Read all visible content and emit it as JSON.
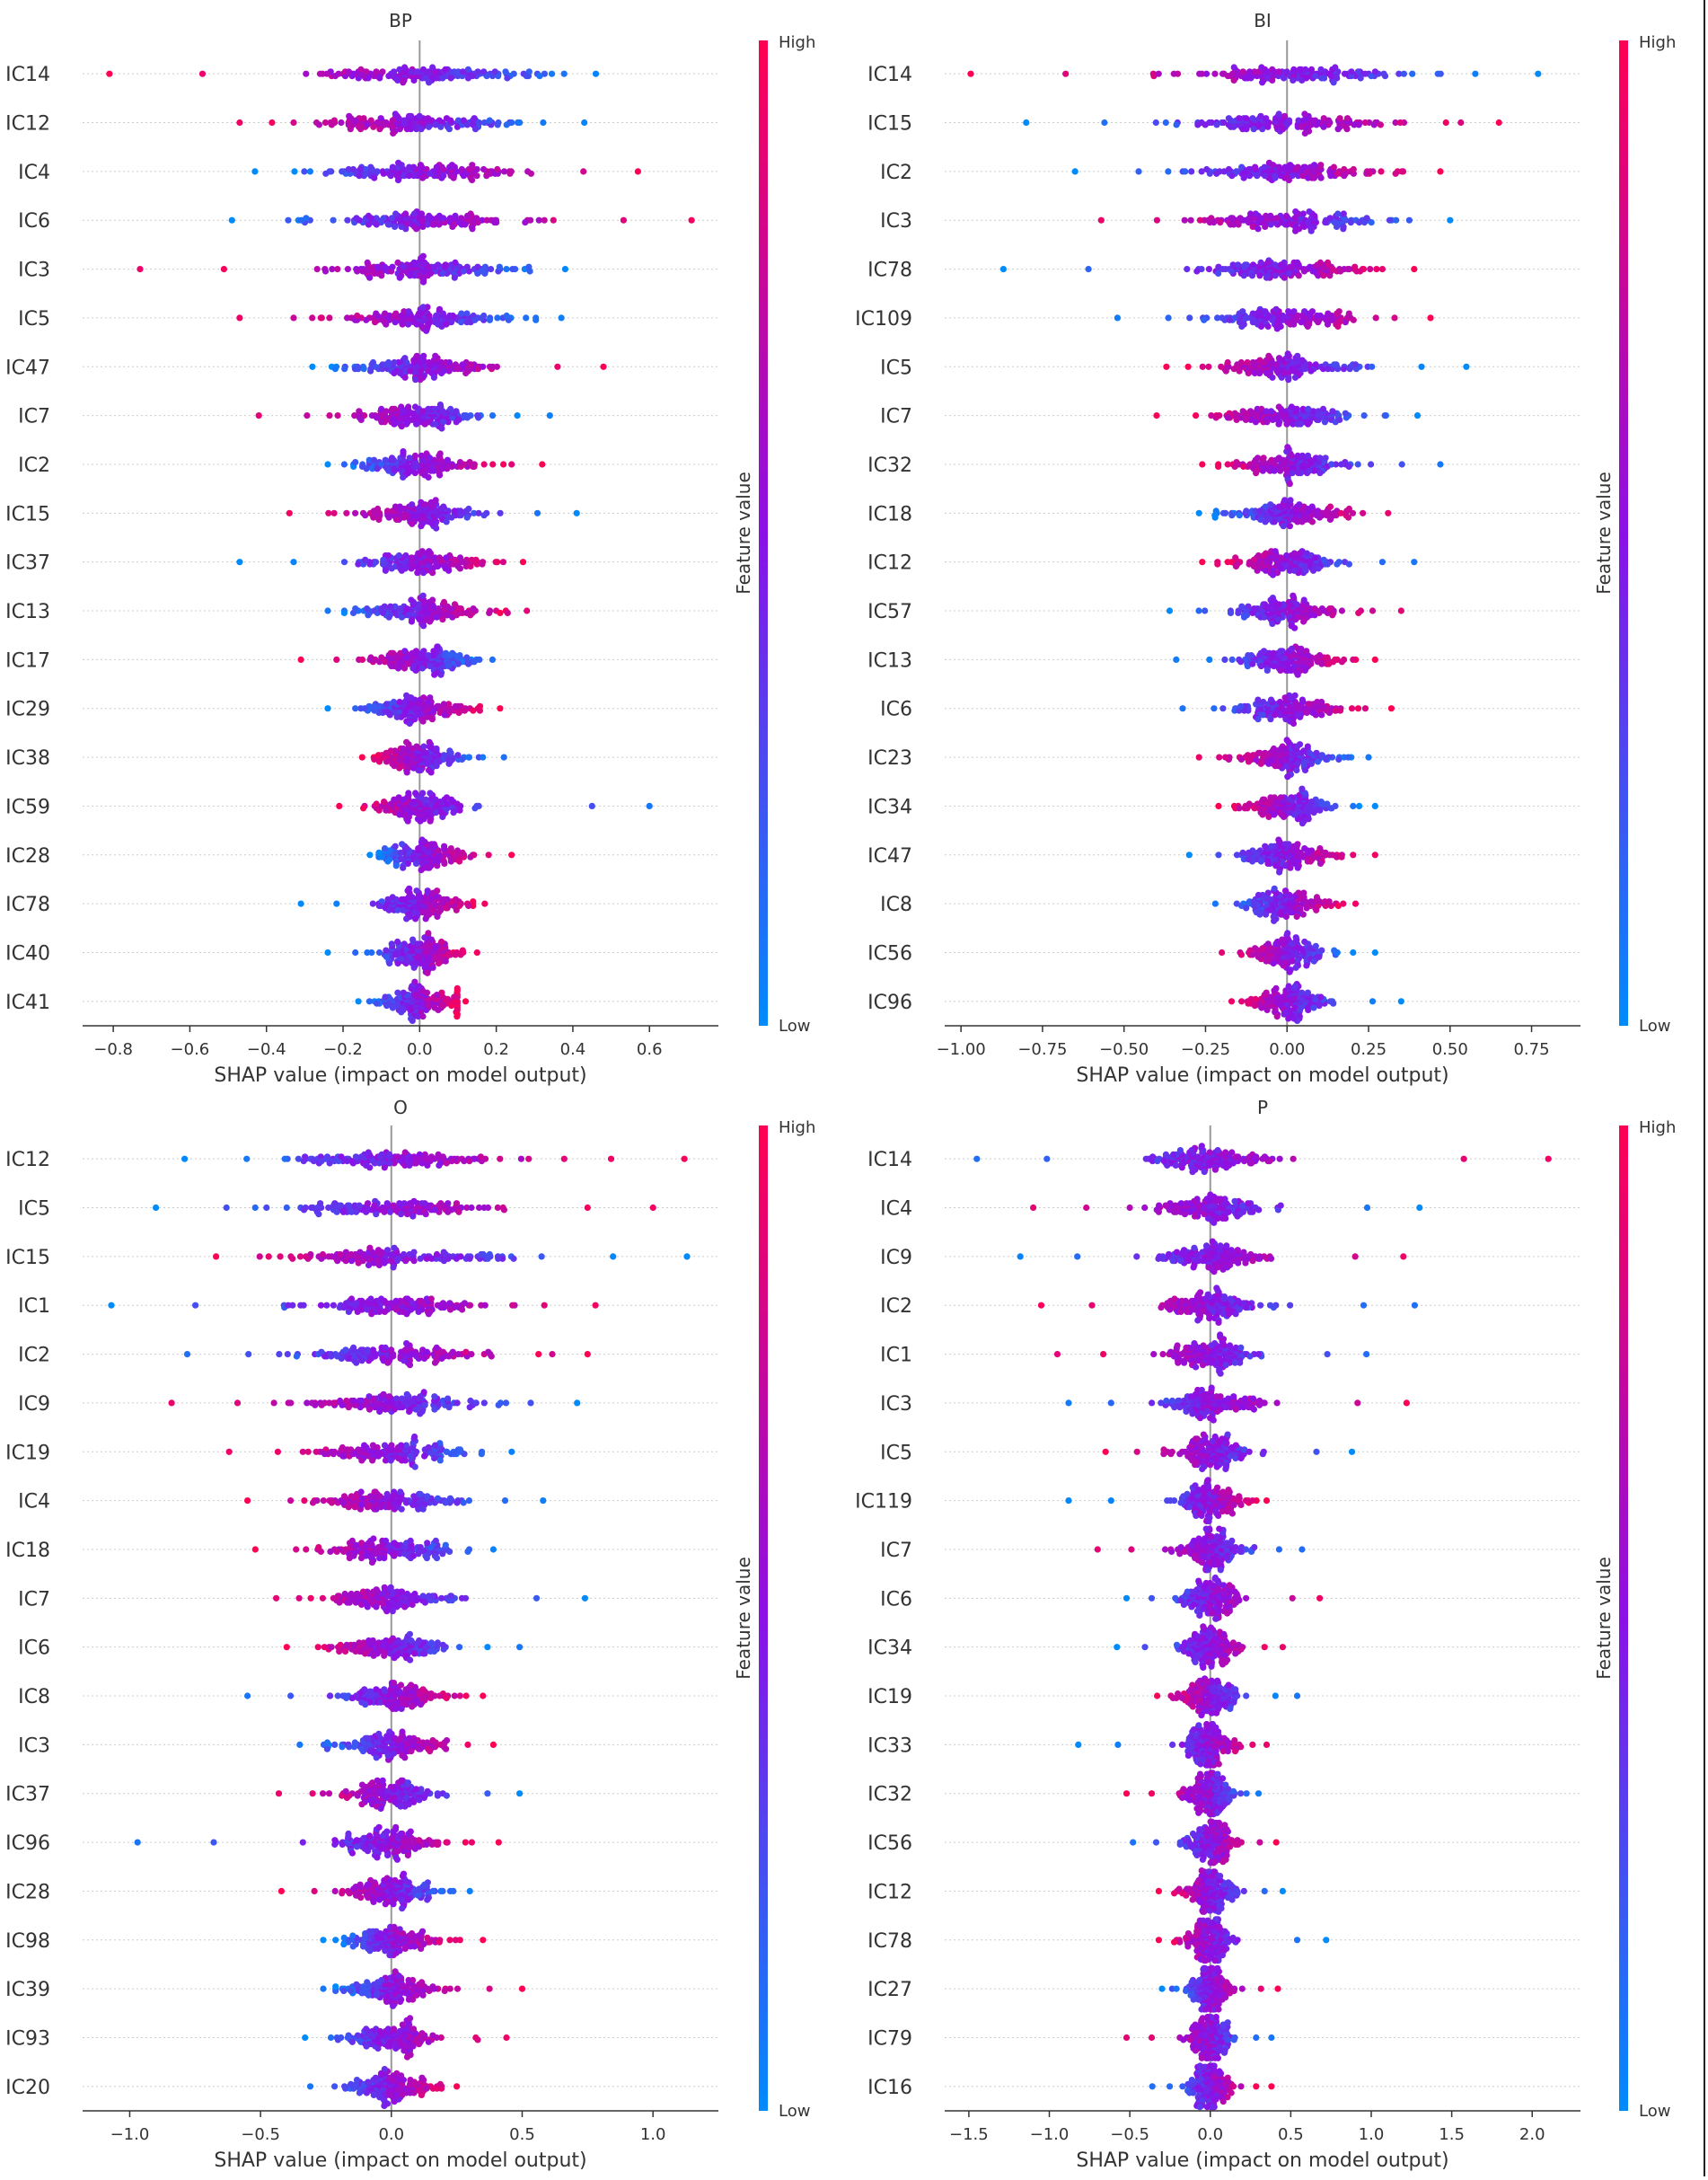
{
  "figure": {
    "colorbar_high": "High",
    "colorbar_low": "Low",
    "colorbar_label": "Feature value"
  },
  "colors": {
    "high": "#ff0052",
    "mid": "#8c10e6",
    "low": "#008bfb",
    "axis": "#333333",
    "grid": "#cccccc",
    "zero_line": "#999999"
  },
  "chart_data": [
    {
      "type": "scatter",
      "subtype": "shap_beeswarm",
      "title": "BP",
      "xlabel": "SHAP value (impact on model output)",
      "xlim": [
        -0.88,
        0.78
      ],
      "xticks": [
        -0.8,
        -0.6,
        -0.4,
        -0.2,
        0.0,
        0.2,
        0.4,
        0.6
      ],
      "xtick_labels": [
        "−0.8",
        "−0.6",
        "−0.4",
        "−0.2",
        "0.0",
        "0.2",
        "0.4",
        "0.6"
      ],
      "features": [
        {
          "name": "IC14",
          "min": -0.81,
          "max": 0.46,
          "spread": 0.14,
          "orientation": "high_left"
        },
        {
          "name": "IC12",
          "min": -0.47,
          "max": 0.43,
          "spread": 0.13,
          "orientation": "high_left"
        },
        {
          "name": "IC4",
          "min": -0.43,
          "max": 0.57,
          "spread": 0.12,
          "orientation": "high_right"
        },
        {
          "name": "IC6",
          "min": -0.49,
          "max": 0.71,
          "spread": 0.12,
          "orientation": "high_right"
        },
        {
          "name": "IC3",
          "min": -0.73,
          "max": 0.38,
          "spread": 0.11,
          "orientation": "high_left"
        },
        {
          "name": "IC5",
          "min": -0.47,
          "max": 0.37,
          "spread": 0.11,
          "orientation": "high_left"
        },
        {
          "name": "IC47",
          "min": -0.28,
          "max": 0.48,
          "spread": 0.09,
          "orientation": "high_right"
        },
        {
          "name": "IC7",
          "min": -0.42,
          "max": 0.34,
          "spread": 0.09,
          "orientation": "high_left"
        },
        {
          "name": "IC2",
          "min": -0.24,
          "max": 0.32,
          "spread": 0.08,
          "orientation": "high_right"
        },
        {
          "name": "IC15",
          "min": -0.34,
          "max": 0.41,
          "spread": 0.08,
          "orientation": "high_left"
        },
        {
          "name": "IC37",
          "min": -0.47,
          "max": 0.27,
          "spread": 0.08,
          "orientation": "high_right"
        },
        {
          "name": "IC13",
          "min": -0.24,
          "max": 0.28,
          "spread": 0.08,
          "orientation": "high_right"
        },
        {
          "name": "IC17",
          "min": -0.31,
          "max": 0.19,
          "spread": 0.07,
          "orientation": "high_left"
        },
        {
          "name": "IC29",
          "min": -0.24,
          "max": 0.21,
          "spread": 0.07,
          "orientation": "high_right"
        },
        {
          "name": "IC38",
          "min": -0.15,
          "max": 0.22,
          "spread": 0.06,
          "orientation": "high_left"
        },
        {
          "name": "IC59",
          "min": -0.21,
          "max": 0.6,
          "spread": 0.06,
          "orientation": "high_left"
        },
        {
          "name": "IC28",
          "min": -0.13,
          "max": 0.24,
          "spread": 0.06,
          "orientation": "high_right"
        },
        {
          "name": "IC78",
          "min": -0.31,
          "max": 0.17,
          "spread": 0.06,
          "orientation": "high_right"
        },
        {
          "name": "IC40",
          "min": -0.24,
          "max": 0.15,
          "spread": 0.05,
          "orientation": "high_right"
        },
        {
          "name": "IC41",
          "min": -0.16,
          "max": 0.12,
          "spread": 0.05,
          "orientation": "high_right"
        }
      ]
    },
    {
      "type": "scatter",
      "subtype": "shap_beeswarm",
      "title": "BI",
      "xlabel": "SHAP value (impact on model output)",
      "xlim": [
        -1.05,
        0.9
      ],
      "xticks": [
        -1.0,
        -0.75,
        -0.5,
        -0.25,
        0.0,
        0.25,
        0.5,
        0.75
      ],
      "xtick_labels": [
        "−1.00",
        "−0.75",
        "−0.50",
        "−0.25",
        "0.00",
        "0.25",
        "0.50",
        "0.75"
      ],
      "features": [
        {
          "name": "IC14",
          "min": -0.97,
          "max": 0.77,
          "spread": 0.17,
          "orientation": "high_left"
        },
        {
          "name": "IC15",
          "min": -0.8,
          "max": 0.65,
          "spread": 0.15,
          "orientation": "high_right"
        },
        {
          "name": "IC2",
          "min": -0.65,
          "max": 0.47,
          "spread": 0.13,
          "orientation": "high_right"
        },
        {
          "name": "IC3",
          "min": -0.57,
          "max": 0.5,
          "spread": 0.13,
          "orientation": "high_left"
        },
        {
          "name": "IC78",
          "min": -0.87,
          "max": 0.39,
          "spread": 0.12,
          "orientation": "high_right"
        },
        {
          "name": "IC109",
          "min": -0.52,
          "max": 0.44,
          "spread": 0.11,
          "orientation": "high_right"
        },
        {
          "name": "IC5",
          "min": -0.37,
          "max": 0.55,
          "spread": 0.11,
          "orientation": "high_left"
        },
        {
          "name": "IC7",
          "min": -0.4,
          "max": 0.4,
          "spread": 0.1,
          "orientation": "high_left"
        },
        {
          "name": "IC32",
          "min": -0.26,
          "max": 0.47,
          "spread": 0.09,
          "orientation": "high_left"
        },
        {
          "name": "IC18",
          "min": -0.27,
          "max": 0.31,
          "spread": 0.09,
          "orientation": "high_right"
        },
        {
          "name": "IC12",
          "min": -0.26,
          "max": 0.39,
          "spread": 0.09,
          "orientation": "high_left"
        },
        {
          "name": "IC57",
          "min": -0.36,
          "max": 0.35,
          "spread": 0.08,
          "orientation": "high_right"
        },
        {
          "name": "IC13",
          "min": -0.34,
          "max": 0.27,
          "spread": 0.08,
          "orientation": "high_right"
        },
        {
          "name": "IC6",
          "min": -0.32,
          "max": 0.32,
          "spread": 0.08,
          "orientation": "high_right"
        },
        {
          "name": "IC23",
          "min": -0.27,
          "max": 0.25,
          "spread": 0.07,
          "orientation": "high_left"
        },
        {
          "name": "IC34",
          "min": -0.21,
          "max": 0.27,
          "spread": 0.07,
          "orientation": "high_left"
        },
        {
          "name": "IC47",
          "min": -0.3,
          "max": 0.27,
          "spread": 0.07,
          "orientation": "high_right"
        },
        {
          "name": "IC8",
          "min": -0.22,
          "max": 0.21,
          "spread": 0.07,
          "orientation": "high_right"
        },
        {
          "name": "IC56",
          "min": -0.2,
          "max": 0.27,
          "spread": 0.06,
          "orientation": "high_left"
        },
        {
          "name": "IC96",
          "min": -0.17,
          "max": 0.35,
          "spread": 0.06,
          "orientation": "high_left"
        }
      ]
    },
    {
      "type": "scatter",
      "subtype": "shap_beeswarm",
      "title": "O",
      "xlabel": "SHAP value (impact on model output)",
      "xlim": [
        -1.18,
        1.25
      ],
      "xticks": [
        -1.0,
        -0.5,
        0.0,
        0.5,
        1.0
      ],
      "xtick_labels": [
        "−1.0",
        "−0.5",
        "0.0",
        "0.5",
        "1.0"
      ],
      "features": [
        {
          "name": "IC12",
          "min": -0.79,
          "max": 1.12,
          "spread": 0.2,
          "orientation": "high_right"
        },
        {
          "name": "IC5",
          "min": -0.9,
          "max": 1.0,
          "spread": 0.19,
          "orientation": "high_right"
        },
        {
          "name": "IC15",
          "min": -0.67,
          "max": 1.13,
          "spread": 0.18,
          "orientation": "high_left"
        },
        {
          "name": "IC1",
          "min": -1.07,
          "max": 0.78,
          "spread": 0.17,
          "orientation": "high_right"
        },
        {
          "name": "IC2",
          "min": -0.78,
          "max": 0.75,
          "spread": 0.16,
          "orientation": "high_right"
        },
        {
          "name": "IC9",
          "min": -0.84,
          "max": 0.71,
          "spread": 0.16,
          "orientation": "high_left"
        },
        {
          "name": "IC19",
          "min": -0.62,
          "max": 0.46,
          "spread": 0.14,
          "orientation": "high_left"
        },
        {
          "name": "IC4",
          "min": -0.55,
          "max": 0.58,
          "spread": 0.13,
          "orientation": "high_left"
        },
        {
          "name": "IC18",
          "min": -0.52,
          "max": 0.39,
          "spread": 0.12,
          "orientation": "high_left"
        },
        {
          "name": "IC7",
          "min": -0.44,
          "max": 0.74,
          "spread": 0.12,
          "orientation": "high_left"
        },
        {
          "name": "IC6",
          "min": -0.4,
          "max": 0.49,
          "spread": 0.11,
          "orientation": "high_left"
        },
        {
          "name": "IC8",
          "min": -0.55,
          "max": 0.35,
          "spread": 0.1,
          "orientation": "high_right"
        },
        {
          "name": "IC3",
          "min": -0.35,
          "max": 0.39,
          "spread": 0.1,
          "orientation": "high_right"
        },
        {
          "name": "IC37",
          "min": -0.43,
          "max": 0.49,
          "spread": 0.1,
          "orientation": "high_left"
        },
        {
          "name": "IC96",
          "min": -0.97,
          "max": 0.41,
          "spread": 0.1,
          "orientation": "high_right"
        },
        {
          "name": "IC28",
          "min": -0.42,
          "max": 0.3,
          "spread": 0.09,
          "orientation": "high_left"
        },
        {
          "name": "IC98",
          "min": -0.26,
          "max": 0.35,
          "spread": 0.09,
          "orientation": "high_right"
        },
        {
          "name": "IC39",
          "min": -0.26,
          "max": 0.5,
          "spread": 0.09,
          "orientation": "high_right"
        },
        {
          "name": "IC93",
          "min": -0.33,
          "max": 0.44,
          "spread": 0.09,
          "orientation": "high_right"
        },
        {
          "name": "IC20",
          "min": -0.31,
          "max": 0.25,
          "spread": 0.08,
          "orientation": "high_right"
        }
      ]
    },
    {
      "type": "scatter",
      "subtype": "shap_beeswarm",
      "title": "P",
      "xlabel": "SHAP value (impact on model output)",
      "xlim": [
        -1.65,
        2.3
      ],
      "xticks": [
        -1.5,
        -1.0,
        -0.5,
        0.0,
        0.5,
        1.0,
        1.5,
        2.0
      ],
      "xtick_labels": [
        "−1.5",
        "−1.0",
        "−0.5",
        "0.0",
        "0.5",
        "1.0",
        "1.5",
        "2.0"
      ],
      "features": [
        {
          "name": "IC14",
          "min": -1.45,
          "max": 2.1,
          "spread": 0.2,
          "orientation": "high_right"
        },
        {
          "name": "IC4",
          "min": -1.1,
          "max": 1.3,
          "spread": 0.17,
          "orientation": "high_left"
        },
        {
          "name": "IC9",
          "min": -1.18,
          "max": 1.2,
          "spread": 0.16,
          "orientation": "high_right"
        },
        {
          "name": "IC2",
          "min": -1.05,
          "max": 1.27,
          "spread": 0.15,
          "orientation": "high_left"
        },
        {
          "name": "IC1",
          "min": -0.95,
          "max": 0.97,
          "spread": 0.14,
          "orientation": "high_left"
        },
        {
          "name": "IC3",
          "min": -0.88,
          "max": 1.22,
          "spread": 0.13,
          "orientation": "high_right"
        },
        {
          "name": "IC5",
          "min": -0.65,
          "max": 0.88,
          "spread": 0.12,
          "orientation": "high_left"
        },
        {
          "name": "IC119",
          "min": -0.88,
          "max": 0.35,
          "spread": 0.1,
          "orientation": "high_right"
        },
        {
          "name": "IC7",
          "min": -0.7,
          "max": 0.57,
          "spread": 0.1,
          "orientation": "high_left"
        },
        {
          "name": "IC6",
          "min": -0.52,
          "max": 0.68,
          "spread": 0.09,
          "orientation": "high_right"
        },
        {
          "name": "IC34",
          "min": -0.58,
          "max": 0.45,
          "spread": 0.09,
          "orientation": "high_right"
        },
        {
          "name": "IC19",
          "min": -0.33,
          "max": 0.54,
          "spread": 0.09,
          "orientation": "high_left"
        },
        {
          "name": "IC33",
          "min": -0.82,
          "max": 0.35,
          "spread": 0.08,
          "orientation": "high_right"
        },
        {
          "name": "IC32",
          "min": -0.52,
          "max": 0.3,
          "spread": 0.08,
          "orientation": "high_left"
        },
        {
          "name": "IC56",
          "min": -0.48,
          "max": 0.41,
          "spread": 0.08,
          "orientation": "high_right"
        },
        {
          "name": "IC12",
          "min": -0.32,
          "max": 0.45,
          "spread": 0.08,
          "orientation": "high_left"
        },
        {
          "name": "IC78",
          "min": -0.32,
          "max": 0.72,
          "spread": 0.08,
          "orientation": "high_left"
        },
        {
          "name": "IC27",
          "min": -0.3,
          "max": 0.42,
          "spread": 0.07,
          "orientation": "high_right"
        },
        {
          "name": "IC79",
          "min": -0.52,
          "max": 0.38,
          "spread": 0.07,
          "orientation": "high_left"
        },
        {
          "name": "IC16",
          "min": -0.36,
          "max": 0.38,
          "spread": 0.07,
          "orientation": "high_right"
        }
      ]
    }
  ]
}
